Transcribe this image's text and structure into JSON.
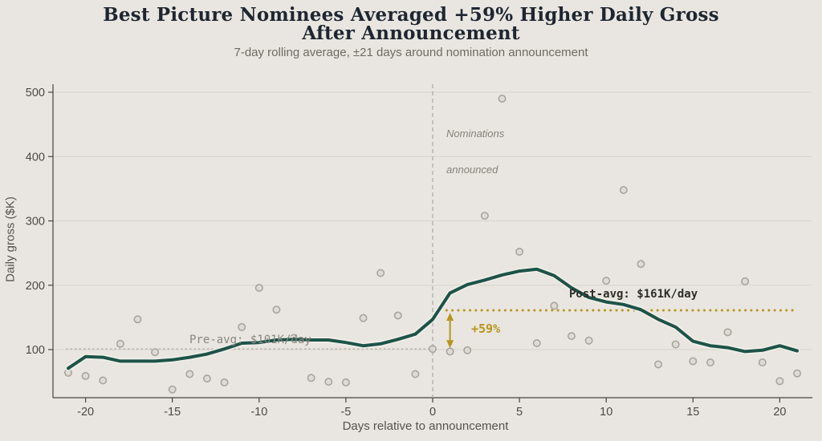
{
  "colors": {
    "background": "#e9e6e1",
    "ink": "#1f2630",
    "muted": "#6e6b63",
    "grid": "#d6d3cc",
    "axis": "#45443e",
    "tick_text": "#4c4a44",
    "teal_line": "#1d5348",
    "line_halo": "#f1efe9",
    "gold": "#b8951a",
    "dot_fill": "#d9d6cf",
    "dot_stroke": "#a9a59d",
    "dashed_gray": "#b3afa8"
  },
  "header": {
    "title_line1": "Best Picture Nominees Averaged +59% Higher Daily Gross",
    "title_line2": "After Announcement",
    "subtitle": "7-day rolling average, ±21 days around nomination announcement"
  },
  "annotations": {
    "nominations_line1": "Nominations",
    "nominations_line2": "announced",
    "post_avg_label": "Post-avg: $161K/day",
    "pre_avg_label": "Pre-avg: $101K/day",
    "pct_label": "+59%"
  },
  "chart_data": {
    "type": "line",
    "title": "Best Picture Nominees Averaged +59% Higher Daily Gross After Announcement",
    "subtitle": "7-day rolling average, ±21 days around nomination announcement",
    "xlabel": "Days relative to announcement",
    "ylabel": "Daily gross ($K)",
    "xlim": [
      -22,
      22.5
    ],
    "ylim": [
      25,
      512
    ],
    "x_ticks": [
      -20,
      -15,
      -10,
      -5,
      0,
      5,
      10,
      15,
      20
    ],
    "y_ticks": [
      100,
      200,
      300,
      400,
      500
    ],
    "grid": "horizontal",
    "legend_position": "none",
    "x": [
      -21,
      -20,
      -19,
      -18,
      -17,
      -16,
      -15,
      -14,
      -13,
      -12,
      -11,
      -10,
      -9,
      -8,
      -7,
      -6,
      -5,
      -4,
      -3,
      -2,
      -1,
      0,
      1,
      2,
      3,
      4,
      5,
      6,
      7,
      8,
      9,
      10,
      11,
      12,
      13,
      14,
      15,
      16,
      17,
      18,
      19,
      20,
      21
    ],
    "series": [
      {
        "name": "daily-gross-scatter",
        "type": "scatter",
        "values": [
          64,
          59,
          52,
          109,
          147,
          96,
          38,
          62,
          55,
          49,
          135,
          196,
          162,
          118,
          56,
          50,
          49,
          149,
          219,
          153,
          62,
          101,
          97,
          99,
          308,
          490,
          252,
          110,
          168,
          121,
          114,
          207,
          348,
          233,
          77,
          108,
          82,
          80,
          127,
          206,
          80,
          51,
          63
        ]
      },
      {
        "name": "7-day-rolling-average",
        "type": "line",
        "values": [
          71,
          89,
          88,
          82,
          82,
          82,
          84,
          88,
          93,
          101,
          110,
          111,
          115,
          116,
          115,
          115,
          111,
          106,
          109,
          116,
          124,
          147,
          188,
          201,
          208,
          216,
          222,
          225,
          215,
          196,
          181,
          174,
          170,
          162,
          147,
          135,
          113,
          106,
          103,
          97,
          99,
          106,
          98
        ]
      }
    ],
    "reference_lines": {
      "announcement_x": 0,
      "pre_avg_value": 101,
      "pre_avg_span_days": [
        -21,
        0
      ],
      "post_avg_value": 161,
      "post_avg_span_days": [
        0.8,
        21
      ],
      "pct_change": "+59%"
    }
  }
}
